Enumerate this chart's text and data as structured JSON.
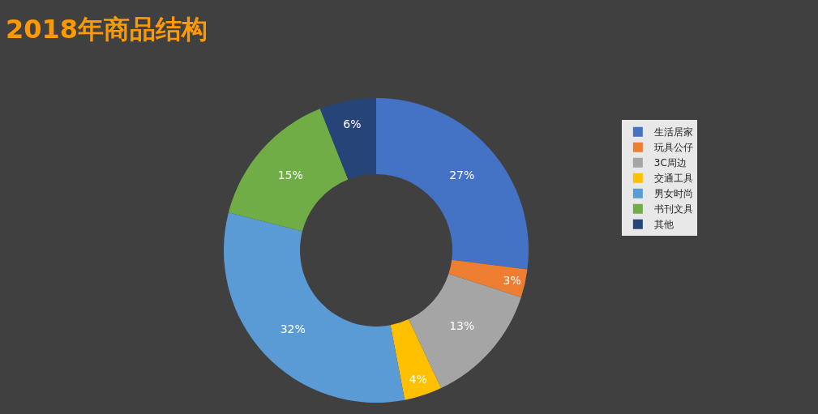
{
  "chart_data": {
    "type": "donut",
    "title": "2018年商品结构",
    "categories": [
      "生活居家",
      "玩具公仔",
      "3C周边",
      "交通工具",
      "男女时尚",
      "书刊文具",
      "其他"
    ],
    "values": [
      27,
      3,
      13,
      4,
      32,
      15,
      6
    ],
    "value_labels": [
      "27%",
      "3%",
      "13%",
      "4%",
      "32%",
      "15%",
      "6%"
    ],
    "colors": [
      "#4472c4",
      "#ed7d31",
      "#a5a5a5",
      "#ffc000",
      "#5b9bd5",
      "#70ad47",
      "#264478"
    ],
    "legend": "right"
  }
}
